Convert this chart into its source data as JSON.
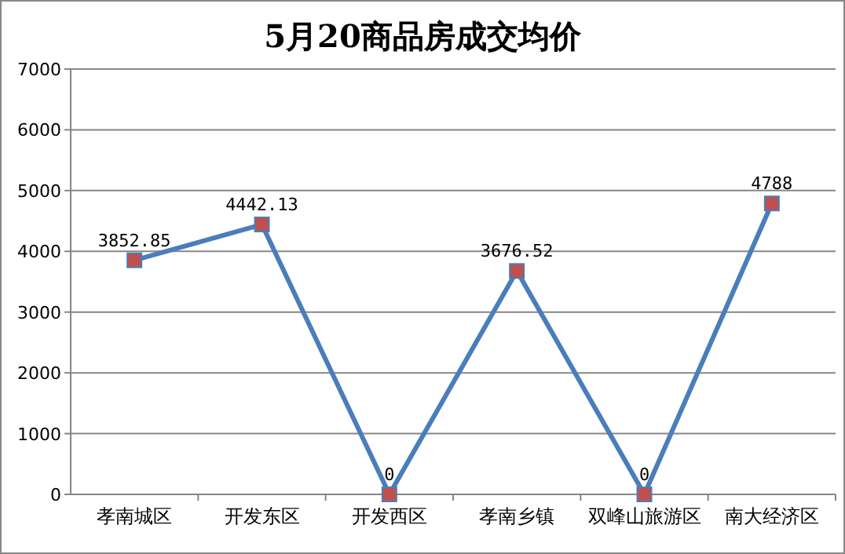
{
  "chart_data": {
    "type": "line",
    "title": "5月20商品房成交均价",
    "categories": [
      "孝南城区",
      "开发东区",
      "开发西区",
      "孝南乡镇",
      "双峰山旅游区",
      "南大经济区"
    ],
    "series": [
      {
        "color": "#4a7ebb",
        "values": [
          3852.85,
          4442.13,
          0,
          3676.52,
          0,
          4788
        ]
      }
    ],
    "ylim": [
      0,
      7000
    ],
    "yticks": [
      0,
      1000,
      2000,
      3000,
      4000,
      5000,
      6000,
      7000
    ],
    "grid": "y",
    "marker": "square",
    "line_style": "solid",
    "data_labels": true
  }
}
